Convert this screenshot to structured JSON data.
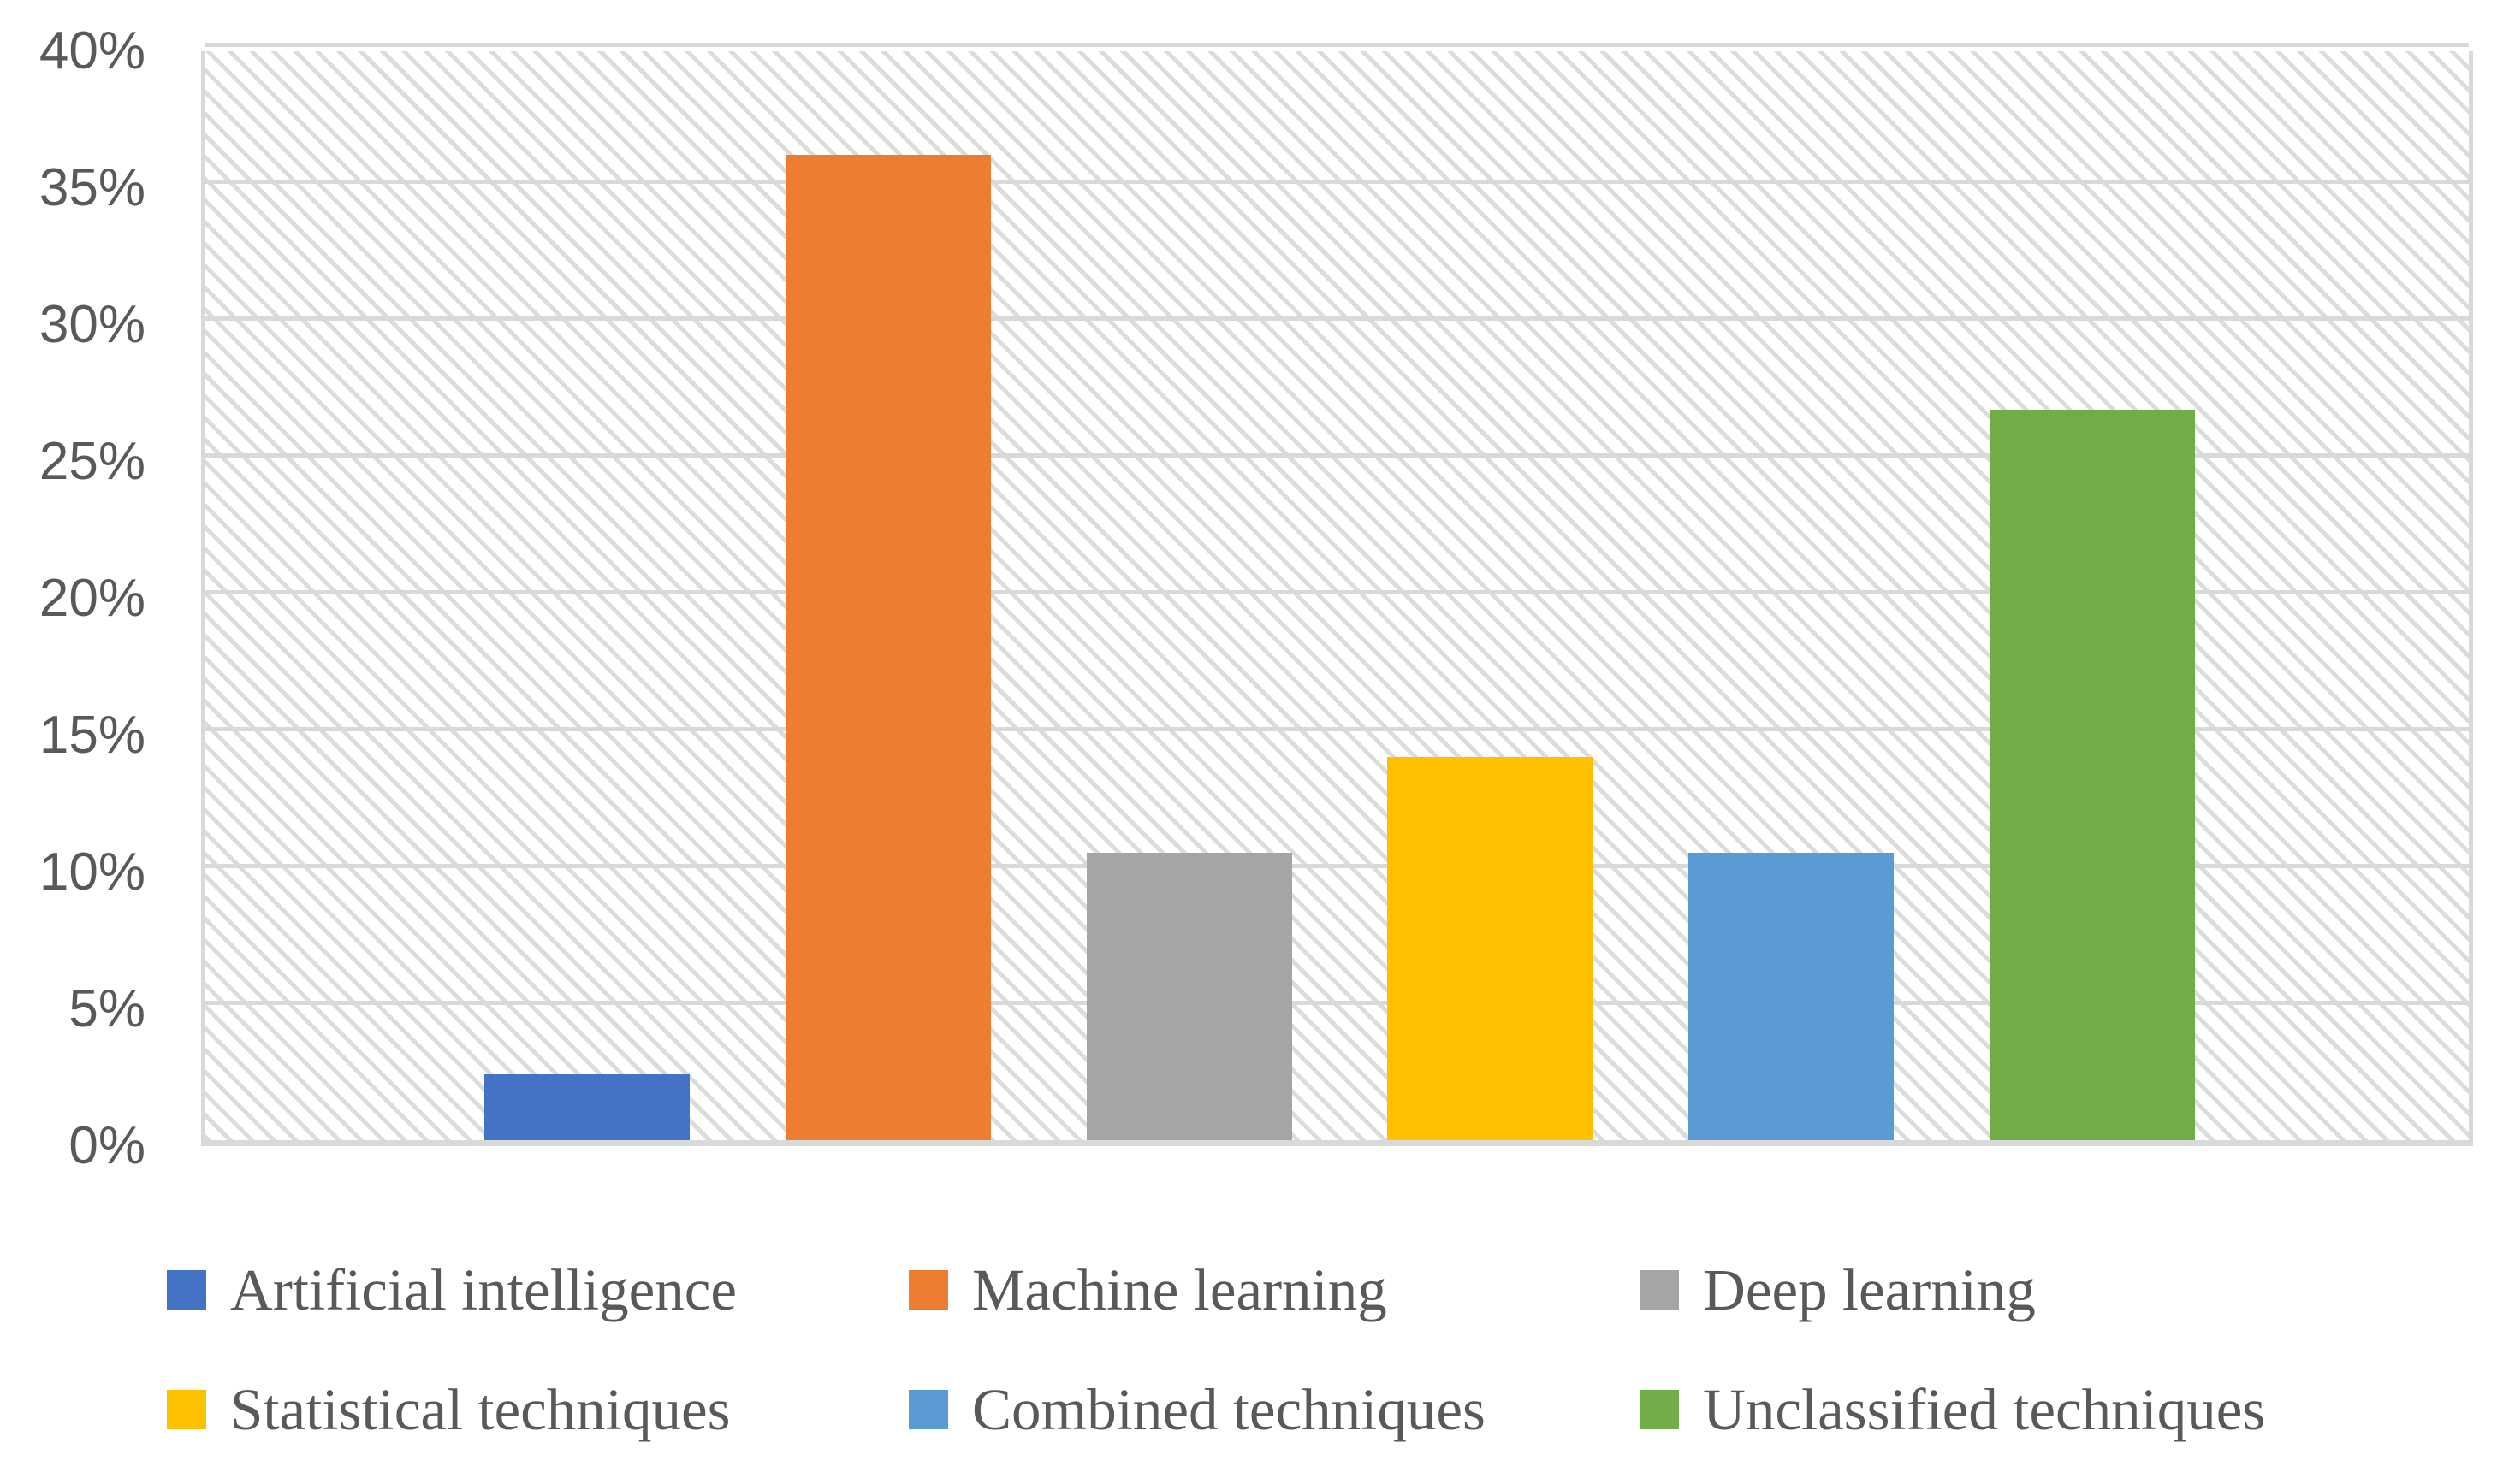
{
  "figure": {
    "background_color": "#ffffff",
    "plot_pattern": "light-downward-diagonal-hatch",
    "pattern_color": "#dcdcdc",
    "grid_color": "#d9d9d9",
    "axis_text_color": "#595959",
    "legend_text_color": "#595959"
  },
  "chart_data": {
    "type": "bar",
    "title": "",
    "xlabel": "",
    "ylabel": "",
    "categories": [
      "Artificial intelligence",
      "Machine learning",
      "Deep learning",
      "Statistical techniques",
      "Combined techniques",
      "Unclassified techniques"
    ],
    "values": [
      2.4,
      36.0,
      10.5,
      14.0,
      10.5,
      26.7
    ],
    "colors": [
      "#4472C4",
      "#ED7D31",
      "#A5A5A5",
      "#FFC000",
      "#5B9BD5",
      "#70AD47"
    ],
    "ylim": [
      0,
      40
    ],
    "ytick_step": 5,
    "ytick_labels": [
      "0%",
      "5%",
      "10%",
      "15%",
      "20%",
      "25%",
      "30%",
      "35%",
      "40%"
    ],
    "grid": true,
    "legend_position": "bottom",
    "legend_rows": 2,
    "legend_entries": [
      {
        "label": "Artificial intelligence",
        "color": "#4472C4"
      },
      {
        "label": "Machine learning",
        "color": "#ED7D31"
      },
      {
        "label": "Deep learning",
        "color": "#A5A5A5"
      },
      {
        "label": "Statistical techniques",
        "color": "#FFC000"
      },
      {
        "label": "Combined techniques",
        "color": "#5B9BD5"
      },
      {
        "label": "Unclassified techniques",
        "color": "#70AD47"
      }
    ]
  }
}
